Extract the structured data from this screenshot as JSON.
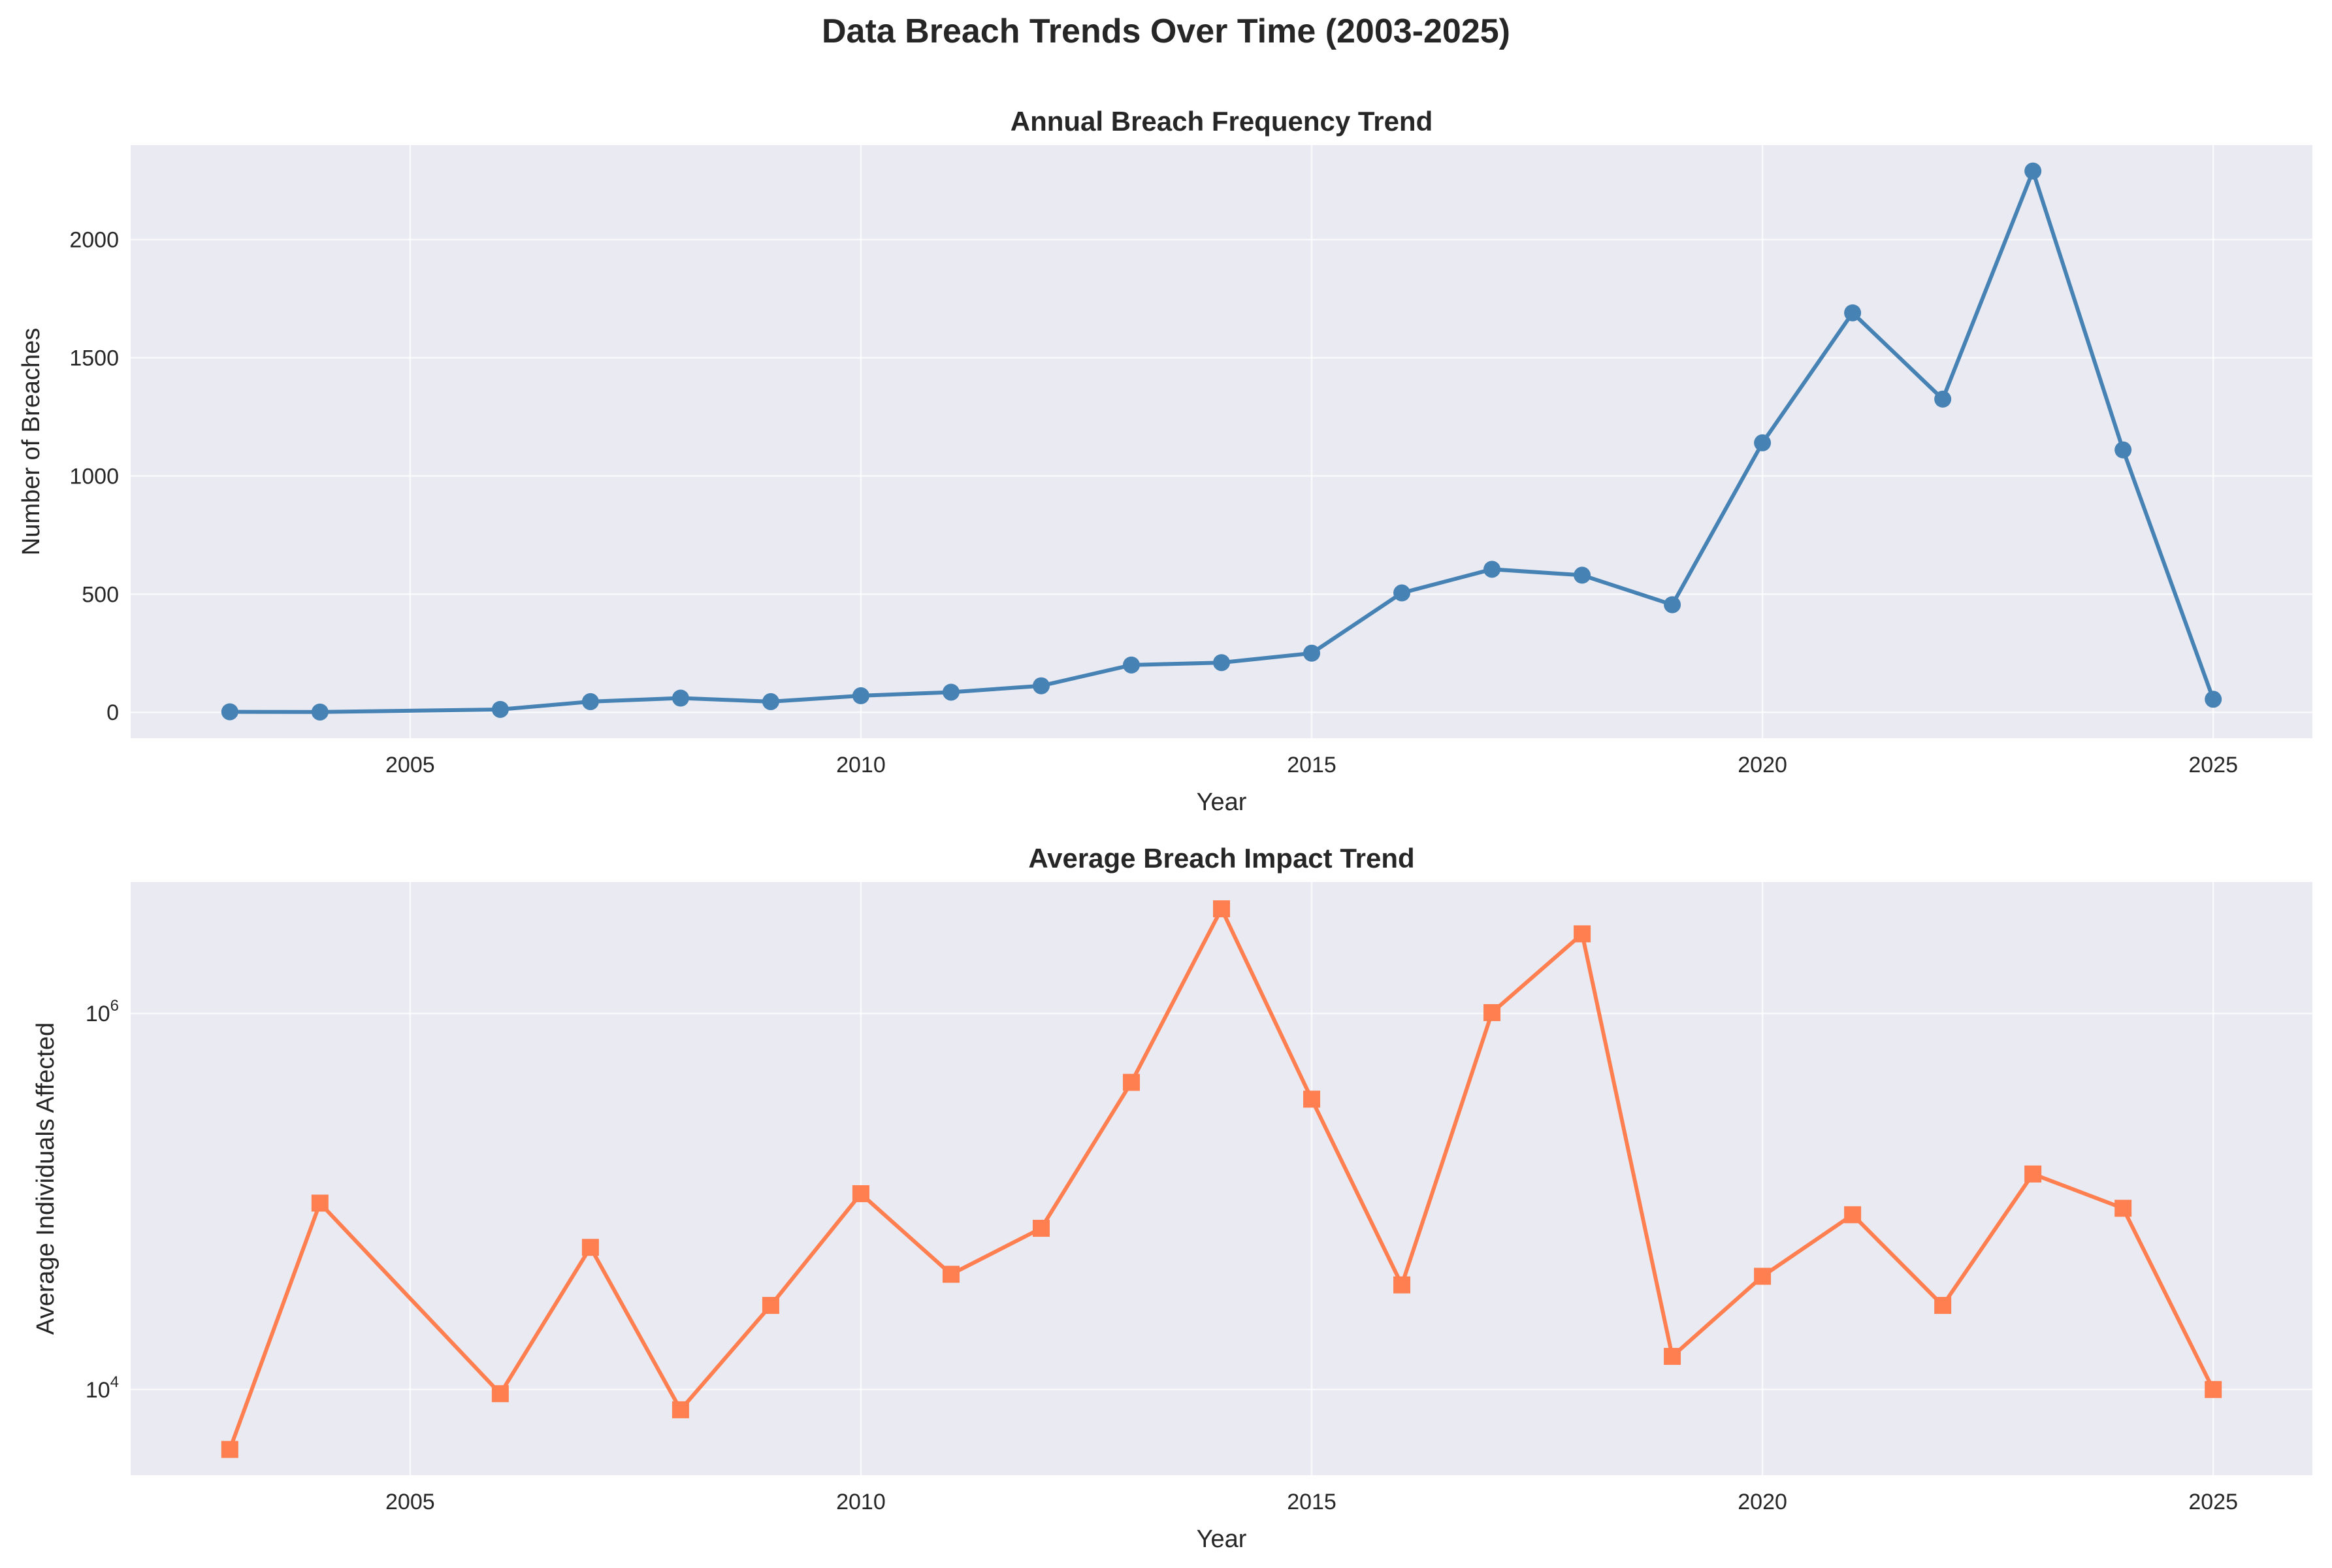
{
  "figure": {
    "title": "Data Breach Trends Over Time (2003-2025)"
  },
  "colors": {
    "background": "#eaeaf2",
    "grid": "#ffffff",
    "series1": "#4682b4",
    "series2": "#ff7f50"
  },
  "chart_data": [
    {
      "type": "line",
      "title": "Annual Breach Frequency Trend",
      "xlabel": "Year",
      "ylabel": "Number of Breaches",
      "marker": "circle",
      "color": "#4682b4",
      "xlim": [
        2001.9,
        2026.1
      ],
      "ylim": [
        -110,
        2400
      ],
      "xticks": [
        2005,
        2010,
        2015,
        2020,
        2025
      ],
      "yticks": [
        0,
        500,
        1000,
        1500,
        2000
      ],
      "yscale": "linear",
      "grid": true,
      "x": [
        2003,
        2004,
        2006,
        2007,
        2008,
        2009,
        2010,
        2011,
        2012,
        2013,
        2014,
        2015,
        2016,
        2017,
        2018,
        2019,
        2020,
        2021,
        2022,
        2023,
        2024,
        2025
      ],
      "y": [
        2,
        1,
        12,
        45,
        60,
        45,
        70,
        85,
        112,
        200,
        210,
        250,
        505,
        605,
        580,
        455,
        1140,
        1690,
        1325,
        2290,
        1110,
        55
      ]
    },
    {
      "type": "line",
      "title": "Average Breach Impact Trend",
      "xlabel": "Year",
      "ylabel": "Average Individuals Affected",
      "marker": "square",
      "color": "#ff7f50",
      "xlim": [
        2001.9,
        2026.1
      ],
      "ylim": [
        3500,
        5000000
      ],
      "xticks": [
        2005,
        2010,
        2015,
        2020,
        2025
      ],
      "yticks": [
        10000,
        1000000
      ],
      "yscale": "log",
      "grid": true,
      "x": [
        2003,
        2004,
        2006,
        2007,
        2008,
        2009,
        2010,
        2011,
        2012,
        2013,
        2014,
        2015,
        2016,
        2017,
        2018,
        2019,
        2020,
        2021,
        2022,
        2023,
        2024,
        2025
      ],
      "y": [
        4800,
        98000,
        9500,
        57000,
        7800,
        28000,
        110000,
        41000,
        72000,
        430000,
        3600000,
        350000,
        36000,
        1010000,
        2650000,
        15000,
        40000,
        85000,
        28000,
        140000,
        92000,
        10000
      ]
    }
  ]
}
